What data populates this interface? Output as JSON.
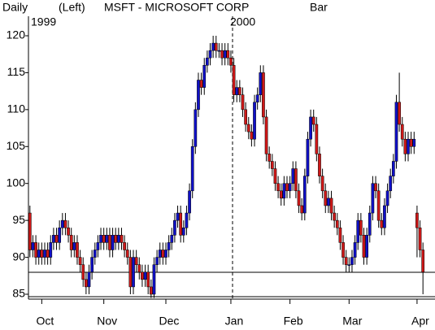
{
  "header": {
    "period": "Daily",
    "axis_side": "(Left)",
    "symbol": "MSFT - MICROSOFT CORP",
    "style": "Bar"
  },
  "chart_data": {
    "type": "candlestick",
    "year_labels": [
      "1999",
      "2000"
    ],
    "up_color": "#1010c8",
    "down_color": "#d01818",
    "wick_color": "#000000",
    "ylim": [
      84.34,
      122.64
    ],
    "yticks": [
      85,
      90,
      95,
      100,
      105,
      110,
      115,
      120
    ],
    "categories": [
      null,
      null,
      null,
      null,
      "Oct",
      null,
      null,
      null,
      null,
      null,
      null,
      null,
      null,
      null,
      null,
      null,
      null,
      null,
      null,
      null,
      null,
      null,
      null,
      null,
      null,
      "Nov",
      null,
      null,
      null,
      null,
      null,
      null,
      null,
      null,
      null,
      null,
      null,
      null,
      null,
      null,
      null,
      null,
      null,
      null,
      null,
      null,
      "Dec",
      null,
      null,
      null,
      null,
      null,
      null,
      null,
      null,
      null,
      null,
      null,
      null,
      null,
      null,
      null,
      null,
      null,
      null,
      null,
      null,
      null,
      "Jan",
      null,
      null,
      null,
      null,
      null,
      null,
      null,
      null,
      null,
      null,
      null,
      null,
      null,
      null,
      null,
      null,
      null,
      null,
      null,
      "Feb",
      null,
      null,
      null,
      null,
      null,
      null,
      null,
      null,
      null,
      null,
      null,
      null,
      null,
      null,
      null,
      null,
      null,
      null,
      null,
      "Mar",
      null,
      null,
      null,
      null,
      null,
      null,
      null,
      null,
      null,
      null,
      null,
      null,
      null,
      null,
      null,
      null,
      null,
      null,
      null,
      null,
      null,
      null,
      "Apr",
      null,
      null
    ],
    "candles": [
      [
        96,
        97,
        90,
        91
      ],
      [
        91,
        93,
        90,
        92
      ],
      [
        92,
        93,
        89,
        90
      ],
      [
        90,
        92,
        89,
        91
      ],
      [
        91,
        92,
        89,
        90
      ],
      [
        90,
        92,
        89,
        91
      ],
      [
        91,
        92,
        89,
        90
      ],
      [
        90,
        93,
        89,
        92
      ],
      [
        92,
        94,
        91,
        93
      ],
      [
        93,
        94,
        91,
        92
      ],
      [
        92,
        95,
        91,
        94
      ],
      [
        94,
        96,
        93,
        95
      ],
      [
        95,
        96,
        93,
        94
      ],
      [
        94,
        95,
        92,
        93
      ],
      [
        93,
        94,
        90,
        91
      ],
      [
        91,
        93,
        90,
        92
      ],
      [
        92,
        93,
        89,
        90
      ],
      [
        90,
        91,
        88,
        89
      ],
      [
        89,
        90,
        86,
        87
      ],
      [
        87,
        88,
        85,
        86
      ],
      [
        86,
        89,
        85,
        88
      ],
      [
        88,
        91,
        87,
        90
      ],
      [
        90,
        92,
        89,
        91
      ],
      [
        91,
        93,
        90,
        92
      ],
      [
        92,
        94,
        91,
        93
      ],
      [
        93,
        94,
        91,
        92
      ],
      [
        92,
        94,
        91,
        93
      ],
      [
        93,
        94,
        90,
        91
      ],
      [
        91,
        94,
        90,
        93
      ],
      [
        93,
        94,
        91,
        92
      ],
      [
        92,
        94,
        91,
        93
      ],
      [
        93,
        94,
        91,
        92
      ],
      [
        92,
        93,
        90,
        91
      ],
      [
        91,
        92,
        89,
        90
      ],
      [
        90,
        91,
        85,
        86
      ],
      [
        86,
        91,
        85,
        90
      ],
      [
        90,
        91,
        88,
        89
      ],
      [
        89,
        90,
        87,
        88
      ],
      [
        88,
        89,
        86,
        87
      ],
      [
        87,
        89,
        86,
        88
      ],
      [
        88,
        89,
        85,
        86
      ],
      [
        86,
        87,
        84.5,
        85
      ],
      [
        85,
        90,
        84.5,
        89
      ],
      [
        89,
        91,
        88,
        90
      ],
      [
        90,
        92,
        89,
        91
      ],
      [
        91,
        92,
        89,
        90
      ],
      [
        90,
        92,
        89,
        91
      ],
      [
        91,
        93,
        90,
        92
      ],
      [
        92,
        94,
        91,
        93
      ],
      [
        93,
        96,
        92,
        95
      ],
      [
        95,
        97,
        94,
        96
      ],
      [
        96,
        97,
        92,
        93
      ],
      [
        93,
        95,
        92,
        94
      ],
      [
        94,
        97,
        93,
        96
      ],
      [
        96,
        100,
        95,
        99
      ],
      [
        99,
        106,
        98,
        105
      ],
      [
        105,
        111,
        104,
        110
      ],
      [
        110,
        115,
        109,
        114
      ],
      [
        114,
        115,
        112,
        113
      ],
      [
        113,
        117,
        112,
        116
      ],
      [
        116,
        118,
        115,
        117
      ],
      [
        117,
        119,
        116,
        118
      ],
      [
        118,
        120,
        117,
        119
      ],
      [
        119,
        120,
        117,
        118
      ],
      [
        118,
        119,
        117,
        118
      ],
      [
        118,
        119,
        116,
        117
      ],
      [
        117,
        119,
        116,
        118
      ],
      [
        118,
        119,
        116,
        117
      ],
      [
        117,
        118,
        115,
        116
      ],
      [
        116,
        117,
        111,
        112
      ],
      [
        112,
        114,
        111,
        113
      ],
      [
        113,
        114,
        111,
        112
      ],
      [
        112,
        113,
        109,
        110
      ],
      [
        110,
        111,
        107,
        108
      ],
      [
        108,
        109,
        106,
        107
      ],
      [
        107,
        108,
        105,
        106
      ],
      [
        106,
        112,
        105,
        111
      ],
      [
        111,
        113,
        110,
        112
      ],
      [
        112,
        116,
        111,
        115
      ],
      [
        115,
        116,
        108,
        109
      ],
      [
        109,
        110,
        103,
        104
      ],
      [
        104,
        105,
        102,
        103
      ],
      [
        103,
        104,
        101,
        102
      ],
      [
        102,
        103,
        99,
        100
      ],
      [
        100,
        101,
        98,
        99
      ],
      [
        99,
        100,
        97,
        98
      ],
      [
        98,
        101,
        97,
        100
      ],
      [
        100,
        101,
        98,
        99
      ],
      [
        99,
        101,
        98,
        100
      ],
      [
        100,
        103,
        99,
        102
      ],
      [
        102,
        103,
        98,
        99
      ],
      [
        99,
        100,
        96,
        97
      ],
      [
        97,
        98,
        95,
        96
      ],
      [
        96,
        102,
        95,
        101
      ],
      [
        101,
        107,
        100,
        106
      ],
      [
        106,
        110,
        105,
        109
      ],
      [
        109,
        110,
        107,
        108
      ],
      [
        108,
        109,
        103,
        104
      ],
      [
        104,
        105,
        100,
        101
      ],
      [
        101,
        102,
        98,
        99
      ],
      [
        99,
        100,
        96,
        97
      ],
      [
        97,
        99,
        96,
        98
      ],
      [
        98,
        99,
        95,
        96
      ],
      [
        96,
        97,
        94,
        95
      ],
      [
        95,
        96,
        93,
        94
      ],
      [
        94,
        95,
        91,
        92
      ],
      [
        92,
        93,
        89,
        90
      ],
      [
        90,
        91,
        88,
        89
      ],
      [
        89,
        90,
        88,
        89
      ],
      [
        89,
        91,
        88,
        90
      ],
      [
        90,
        93,
        89,
        92
      ],
      [
        92,
        96,
        91,
        95
      ],
      [
        95,
        96,
        92,
        93
      ],
      [
        93,
        94,
        89,
        90
      ],
      [
        90,
        94,
        89,
        93
      ],
      [
        93,
        97,
        92,
        96
      ],
      [
        96,
        101,
        95,
        100
      ],
      [
        100,
        101,
        98,
        99
      ],
      [
        99,
        100,
        94,
        95
      ],
      [
        95,
        96,
        93,
        94
      ],
      [
        94,
        98,
        93,
        97
      ],
      [
        97,
        100,
        96,
        99
      ],
      [
        99,
        102,
        98,
        101
      ],
      [
        101,
        104,
        100,
        103
      ],
      [
        103,
        112,
        102,
        111
      ],
      [
        111,
        115,
        107,
        108
      ],
      [
        108,
        109,
        105,
        106
      ],
      [
        106,
        107,
        103,
        104
      ],
      [
        104,
        107,
        103,
        106
      ],
      [
        106,
        107,
        104,
        105
      ],
      [
        105,
        107,
        104,
        106
      ],
      [
        96,
        97,
        90,
        94
      ],
      [
        94,
        95,
        90,
        91
      ],
      [
        91,
        92,
        85,
        88
      ]
    ]
  }
}
